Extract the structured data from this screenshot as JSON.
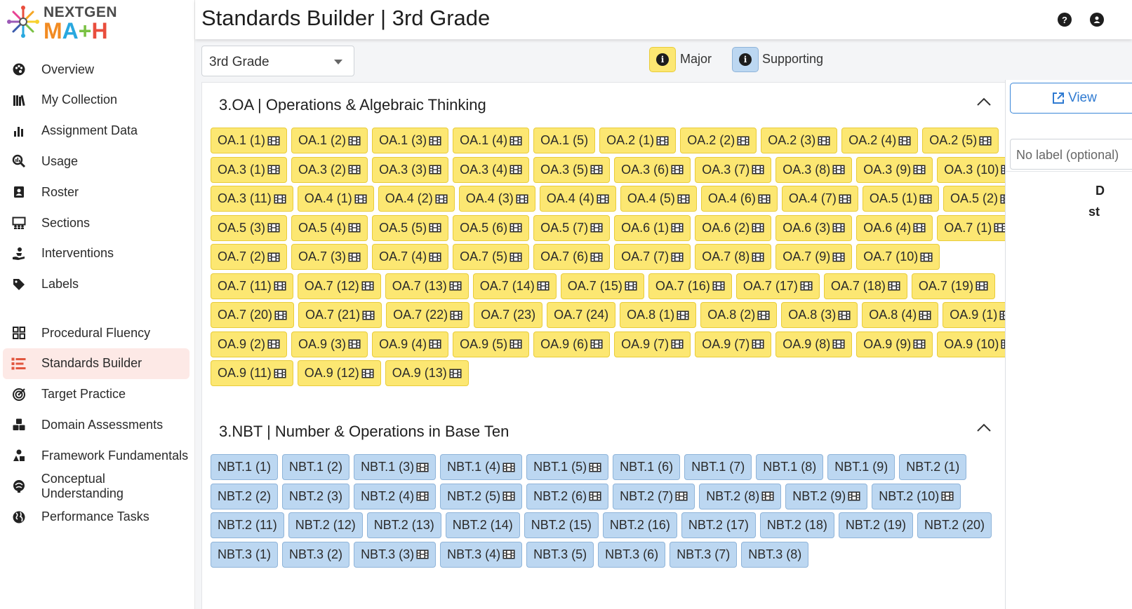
{
  "logo": {
    "top": "NEXTGEN",
    "bottom": [
      "M",
      "A",
      "+",
      "H"
    ]
  },
  "sidebar": {
    "group1": [
      {
        "label": "Overview",
        "icon": "palette-icon"
      },
      {
        "label": "My Collection",
        "icon": "books-icon"
      },
      {
        "label": "Assignment Data",
        "icon": "bar-chart-icon"
      },
      {
        "label": "Usage",
        "icon": "magnify-chart-icon"
      },
      {
        "label": "Roster",
        "icon": "contact-book-icon"
      },
      {
        "label": "Sections",
        "icon": "people-board-icon"
      },
      {
        "label": "Interventions",
        "icon": "hand-person-icon"
      },
      {
        "label": "Labels",
        "icon": "tag-icon"
      }
    ],
    "group2": [
      {
        "label": "Procedural Fluency",
        "icon": "grid-icon"
      },
      {
        "label": "Standards Builder",
        "icon": "list-builder-icon",
        "active": true
      },
      {
        "label": "Target Practice",
        "icon": "target-icon"
      },
      {
        "label": "Domain Assessments",
        "icon": "cubes-icon"
      },
      {
        "label": "Framework Fundamentals",
        "icon": "shapes-icon"
      },
      {
        "label": "Conceptual Understanding",
        "icon": "brain-icon"
      },
      {
        "label": "Performance Tasks",
        "icon": "globe-icon"
      }
    ]
  },
  "header": {
    "title": "Standards Builder | 3rd Grade",
    "help_icon": "question-circle-icon",
    "user_icon": "user-circle-icon"
  },
  "toolbar": {
    "grade_value": "3rd Grade",
    "major_label": "Major",
    "supporting_label": "Supporting",
    "info_glyph": "i"
  },
  "sections": [
    {
      "title": "3.OA | Operations & Algebraic Thinking",
      "kind": "major",
      "rows": [
        [
          [
            "OA.1 (1)",
            1
          ],
          [
            "OA.1 (2)",
            1
          ],
          [
            "OA.1 (3)",
            1
          ],
          [
            "OA.1 (4)",
            1
          ],
          [
            "OA.1 (5)",
            0
          ],
          [
            "OA.2 (1)",
            1
          ],
          [
            "OA.2 (2)",
            1
          ],
          [
            "OA.2 (3)",
            1
          ],
          [
            "OA.2 (4)",
            1
          ],
          [
            "OA.2 (5)",
            1
          ]
        ],
        [
          [
            "OA.3 (1)",
            1
          ],
          [
            "OA.3 (2)",
            1
          ],
          [
            "OA.3 (3)",
            1
          ],
          [
            "OA.3 (4)",
            1
          ],
          [
            "OA.3 (5)",
            1
          ],
          [
            "OA.3 (6)",
            1
          ],
          [
            "OA.3 (7)",
            1
          ],
          [
            "OA.3 (8)",
            1
          ],
          [
            "OA.3 (9)",
            1
          ],
          [
            "OA.3 (10)",
            1
          ]
        ],
        [
          [
            "OA.3 (11)",
            1
          ],
          [
            "OA.4 (1)",
            1
          ],
          [
            "OA.4 (2)",
            1
          ],
          [
            "OA.4 (3)",
            1
          ],
          [
            "OA.4 (4)",
            1
          ],
          [
            "OA.4 (5)",
            1
          ],
          [
            "OA.4 (6)",
            1
          ],
          [
            "OA.4 (7)",
            1
          ],
          [
            "OA.5 (1)",
            1
          ],
          [
            "OA.5 (2)",
            1
          ]
        ],
        [
          [
            "OA.5 (3)",
            1
          ],
          [
            "OA.5 (4)",
            1
          ],
          [
            "OA.5 (5)",
            1
          ],
          [
            "OA.5 (6)",
            1
          ],
          [
            "OA.5 (7)",
            1
          ],
          [
            "OA.6 (1)",
            1
          ],
          [
            "OA.6 (2)",
            1
          ],
          [
            "OA.6 (3)",
            1
          ],
          [
            "OA.6 (4)",
            1
          ],
          [
            "OA.7 (1)",
            1
          ]
        ],
        [
          [
            "OA.7 (2)",
            1
          ],
          [
            "OA.7 (3)",
            1
          ],
          [
            "OA.7 (4)",
            1
          ],
          [
            "OA.7 (5)",
            1
          ],
          [
            "OA.7 (6)",
            1
          ],
          [
            "OA.7 (7)",
            1
          ],
          [
            "OA.7 (8)",
            1
          ],
          [
            "OA.7 (9)",
            1
          ],
          [
            "OA.7 (10)",
            1
          ]
        ],
        [
          [
            "OA.7 (11)",
            1
          ],
          [
            "OA.7 (12)",
            1
          ],
          [
            "OA.7 (13)",
            1
          ],
          [
            "OA.7 (14)",
            1
          ],
          [
            "OA.7 (15)",
            1
          ],
          [
            "OA.7 (16)",
            1
          ],
          [
            "OA.7 (17)",
            1
          ],
          [
            "OA.7 (18)",
            1
          ],
          [
            "OA.7 (19)",
            1
          ]
        ],
        [
          [
            "OA.7 (20)",
            1
          ],
          [
            "OA.7 (21)",
            1
          ],
          [
            "OA.7 (22)",
            1
          ],
          [
            "OA.7 (23)",
            0
          ],
          [
            "OA.7 (24)",
            0
          ],
          [
            "OA.8 (1)",
            1
          ],
          [
            "OA.8 (2)",
            1
          ],
          [
            "OA.8 (3)",
            1
          ],
          [
            "OA.8 (4)",
            1
          ],
          [
            "OA.9 (1)",
            1
          ]
        ],
        [
          [
            "OA.9 (2)",
            1
          ],
          [
            "OA.9 (3)",
            1
          ],
          [
            "OA.9 (4)",
            1
          ],
          [
            "OA.9 (5)",
            1
          ],
          [
            "OA.9 (6)",
            1
          ],
          [
            "OA.9 (7)",
            1
          ],
          [
            "OA.9 (7)",
            1
          ],
          [
            "OA.9 (8)",
            1
          ],
          [
            "OA.9 (9)",
            1
          ],
          [
            "OA.9 (10)",
            1
          ]
        ],
        [
          [
            "OA.9 (11)",
            1
          ],
          [
            "OA.9 (12)",
            1
          ],
          [
            "OA.9 (13)",
            1
          ]
        ]
      ]
    },
    {
      "title": "3.NBT | Number & Operations in Base Ten",
      "kind": "supporting",
      "rows": [
        [
          [
            "NBT.1 (1)",
            0
          ],
          [
            "NBT.1 (2)",
            0
          ],
          [
            "NBT.1 (3)",
            1
          ],
          [
            "NBT.1 (4)",
            1
          ],
          [
            "NBT.1 (5)",
            1
          ],
          [
            "NBT.1 (6)",
            0
          ],
          [
            "NBT.1 (7)",
            0
          ],
          [
            "NBT.1 (8)",
            0
          ],
          [
            "NBT.1 (9)",
            0
          ],
          [
            "NBT.2 (1)",
            0
          ]
        ],
        [
          [
            "NBT.2 (2)",
            0
          ],
          [
            "NBT.2 (3)",
            0
          ],
          [
            "NBT.2 (4)",
            1
          ],
          [
            "NBT.2 (5)",
            1
          ],
          [
            "NBT.2 (6)",
            1
          ],
          [
            "NBT.2 (7)",
            1
          ],
          [
            "NBT.2 (8)",
            1
          ],
          [
            "NBT.2 (9)",
            1
          ],
          [
            "NBT.2 (10)",
            1
          ]
        ],
        [
          [
            "NBT.2 (11)",
            0
          ],
          [
            "NBT.2 (12)",
            0
          ],
          [
            "NBT.2 (13)",
            0
          ],
          [
            "NBT.2 (14)",
            0
          ],
          [
            "NBT.2 (15)",
            0
          ],
          [
            "NBT.2 (16)",
            0
          ],
          [
            "NBT.2 (17)",
            0
          ],
          [
            "NBT.2 (18)",
            0
          ],
          [
            "NBT.2 (19)",
            0
          ],
          [
            "NBT.2 (20)",
            0
          ]
        ],
        [
          [
            "NBT.3 (1)",
            0
          ],
          [
            "NBT.3 (2)",
            0
          ],
          [
            "NBT.3 (3)",
            1
          ],
          [
            "NBT.3 (4)",
            1
          ],
          [
            "NBT.3 (5)",
            0
          ],
          [
            "NBT.3 (6)",
            0
          ],
          [
            "NBT.3 (7)",
            0
          ],
          [
            "NBT.3 (8)",
            0
          ]
        ]
      ]
    }
  ],
  "right_panel": {
    "view_label": "View",
    "label_placeholder": "No label (optional)",
    "text1": "D",
    "text2": "st"
  },
  "colors": {
    "major": "#fce772",
    "supporting": "#bcd7f1",
    "accent": "#e1563f",
    "link": "#2f7ad1"
  }
}
